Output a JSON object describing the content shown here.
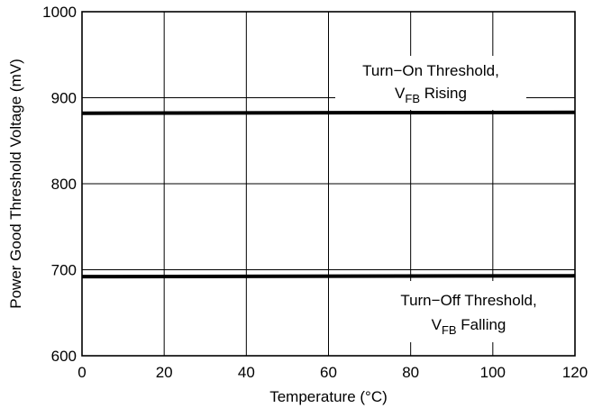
{
  "chart_data": {
    "type": "line",
    "xlabel": "Temperature (°C)",
    "ylabel": "Power Good Threshold Voltage (mV)",
    "xlim": [
      0,
      120
    ],
    "ylim": [
      600,
      1000
    ],
    "x_ticks": [
      0,
      20,
      40,
      60,
      80,
      100,
      120
    ],
    "y_ticks": [
      600,
      700,
      800,
      900,
      1000
    ],
    "grid": true,
    "series": [
      {
        "x": [
          0,
          120
        ],
        "values": [
          882,
          883
        ]
      },
      {
        "x": [
          0,
          120
        ],
        "values": [
          692,
          693
        ]
      }
    ],
    "annotations": [
      {
        "line1": "Turn−On Threshold,",
        "line2_main": "V",
        "line2_sub": "FB",
        "line2_rest": " Rising"
      },
      {
        "line1": "Turn−Off Threshold,",
        "line2_main": "V",
        "line2_sub": "FB",
        "line2_rest": " Falling"
      }
    ]
  }
}
